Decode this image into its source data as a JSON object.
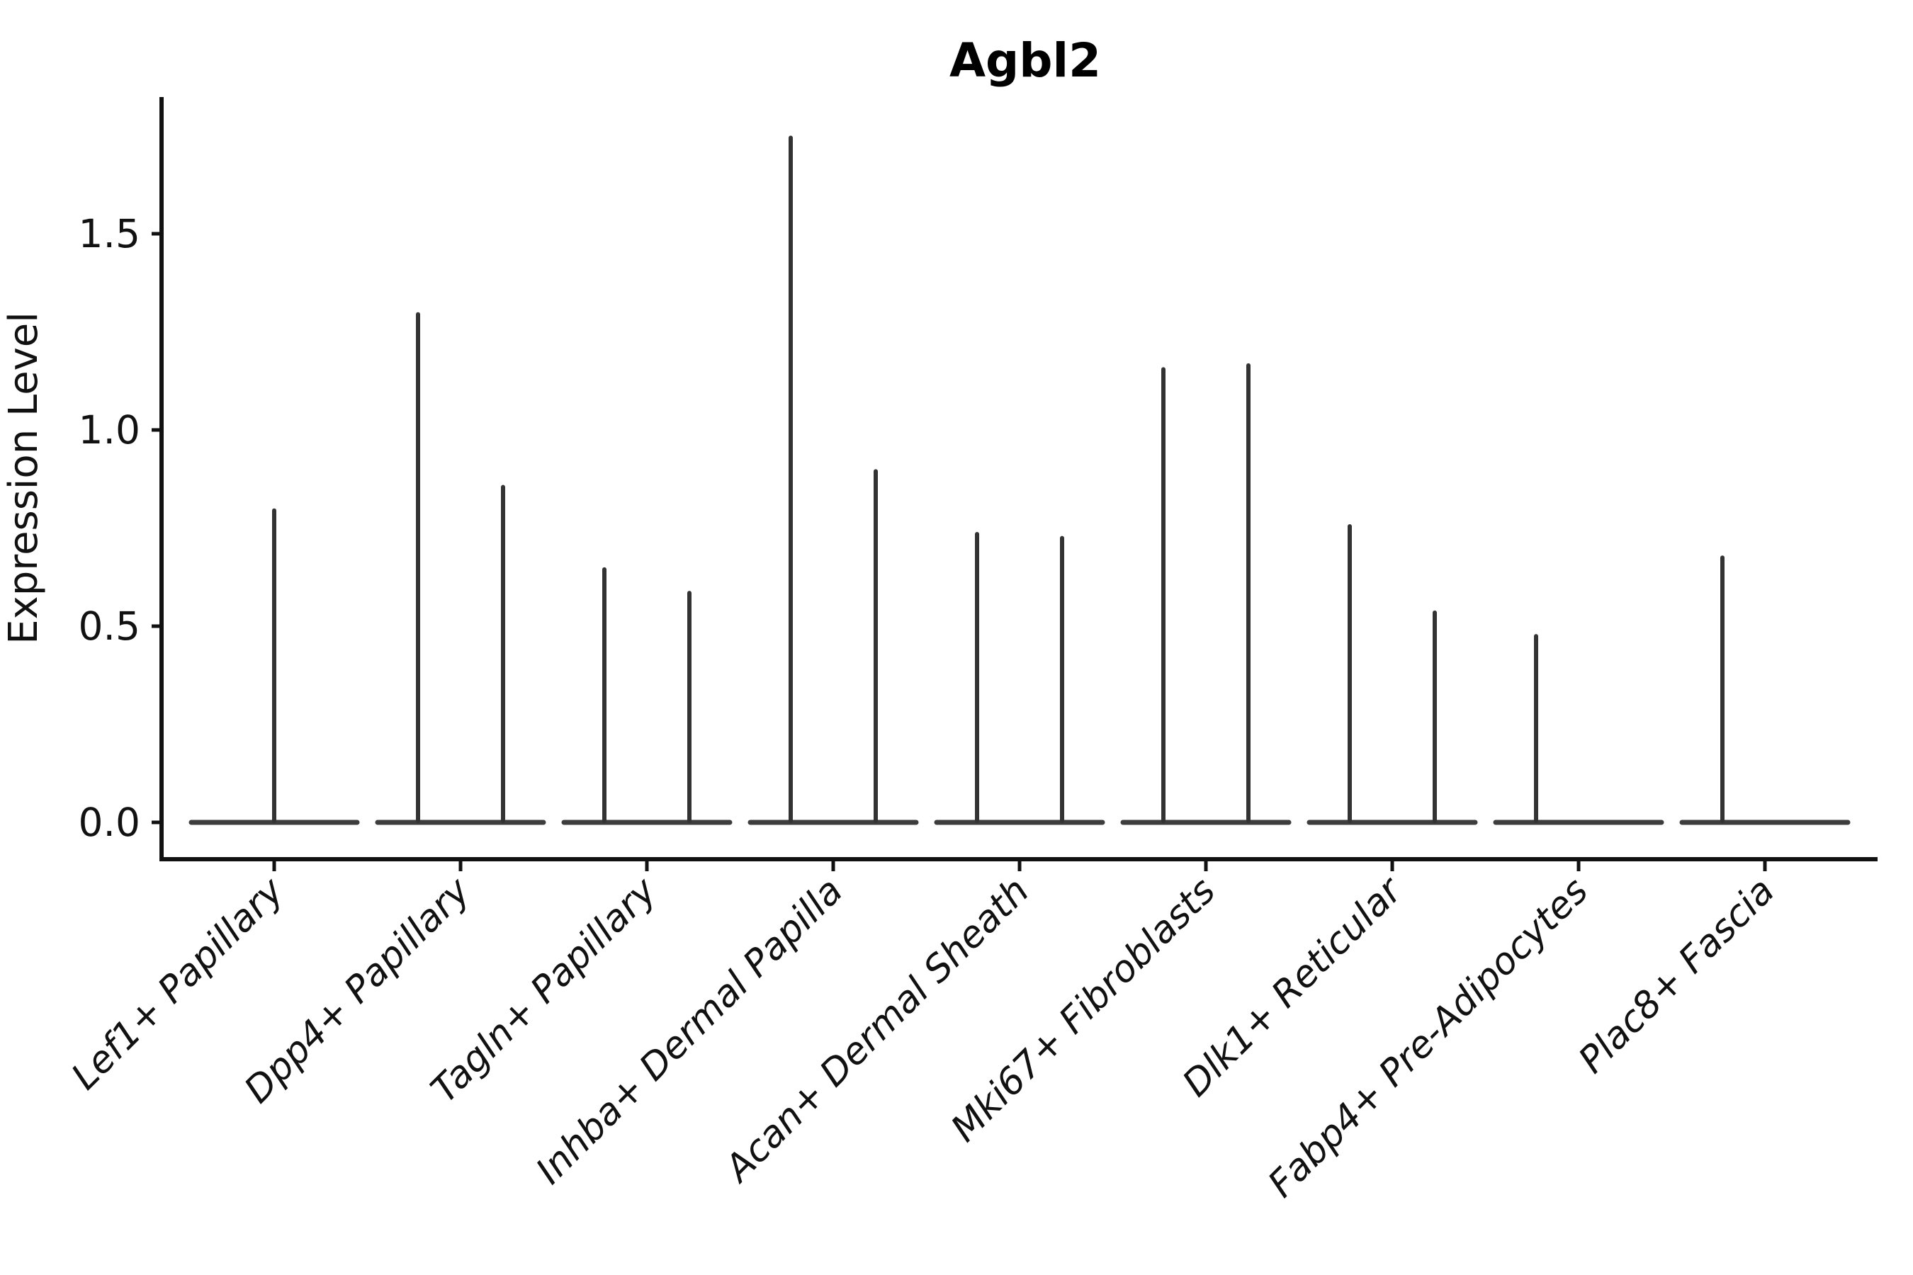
{
  "figure": {
    "title": "Agbl2",
    "background_color": "#ffffff"
  },
  "chart_data": {
    "type": "violin",
    "title": "Agbl2",
    "xlabel": "",
    "ylabel": "Expression Level",
    "legend": "none",
    "grid": false,
    "ylim": [
      0,
      1.85
    ],
    "ytick_labels": [
      "0.0",
      "0.5",
      "1.0",
      "1.5"
    ],
    "ytick_values": [
      0.0,
      0.5,
      1.0,
      1.5
    ],
    "description": "Violin plot of Agbl2 expression per fibroblast cell-type cluster; violins are collapsed to a flat base at 0 with a thin spike up to the maximum expression value. Most categories show two side-by-side split violins.",
    "categories": [
      {
        "label": "Lef1+ Papillary",
        "violins": [
          {
            "position": "center",
            "max_expression": 0.8
          }
        ]
      },
      {
        "label": "Dpp4+ Papillary",
        "violins": [
          {
            "position": "left",
            "max_expression": 1.3
          },
          {
            "position": "right",
            "max_expression": 0.86
          }
        ]
      },
      {
        "label": "Tagln+ Papillary",
        "violins": [
          {
            "position": "left",
            "max_expression": 0.65
          },
          {
            "position": "right",
            "max_expression": 0.59
          }
        ]
      },
      {
        "label": "Inhba+ Dermal Papilla",
        "violins": [
          {
            "position": "left",
            "max_expression": 1.75
          },
          {
            "position": "right",
            "max_expression": 0.9
          }
        ]
      },
      {
        "label": "Acan+ Dermal Sheath",
        "violins": [
          {
            "position": "left",
            "max_expression": 0.74
          },
          {
            "position": "right",
            "max_expression": 0.73
          }
        ]
      },
      {
        "label": "Mki67+ Fibroblasts",
        "violins": [
          {
            "position": "left",
            "max_expression": 1.16
          },
          {
            "position": "right",
            "max_expression": 1.17
          }
        ]
      },
      {
        "label": "Dlk1+ Reticular",
        "violins": [
          {
            "position": "left",
            "max_expression": 0.76
          },
          {
            "position": "right",
            "max_expression": 0.54
          }
        ]
      },
      {
        "label": "Fabp4+ Pre-Adipocytes",
        "violins": [
          {
            "position": "left",
            "max_expression": 0.48
          }
        ]
      },
      {
        "label": "Plac8+ Fascia",
        "violins": [
          {
            "position": "left",
            "max_expression": 0.68
          }
        ]
      }
    ]
  },
  "colors": {
    "spine": "#111111",
    "tick": "#111111",
    "text": "#111111",
    "title": "#000000",
    "violin_spike": "#333333",
    "violin_base": "#3d3d3d",
    "background": "#ffffff"
  }
}
